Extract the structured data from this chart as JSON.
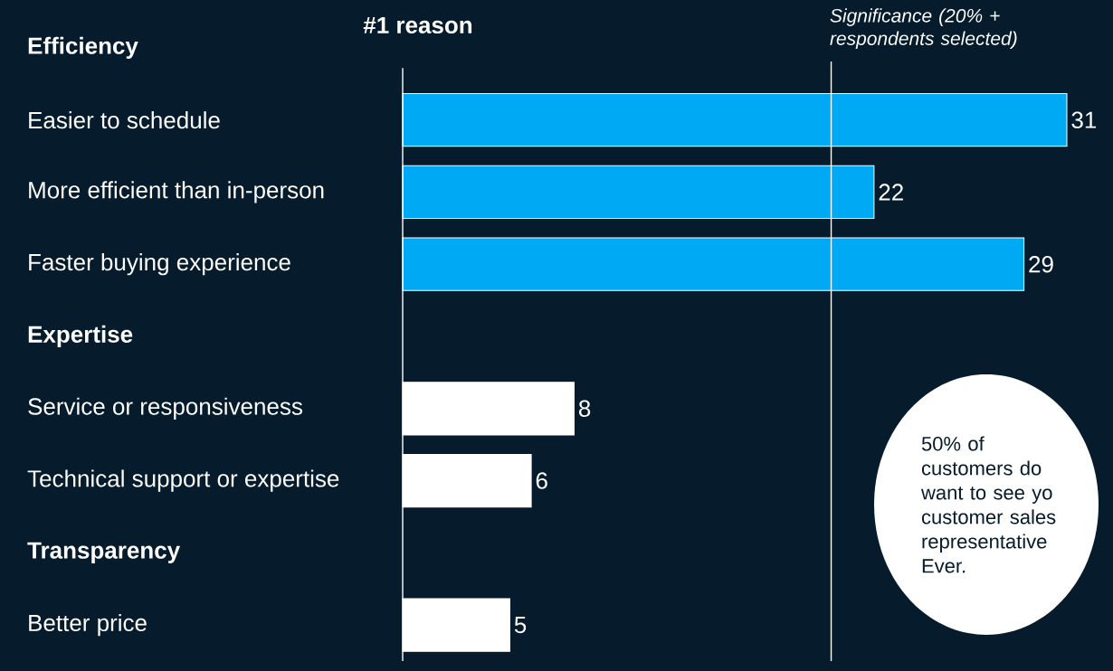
{
  "chart_data": {
    "type": "bar",
    "orientation": "horizontal",
    "title": "#1 reason",
    "categories": [
      "Efficiency",
      "Easier to schedule",
      "More efficient than in-person",
      "Faster buying experience",
      "Expertise",
      "Service or responsiveness",
      "Technical support or expertise",
      "Transparency",
      "Better price"
    ],
    "values": [
      null,
      31,
      22,
      29,
      null,
      8,
      6,
      null,
      5
    ],
    "colors": [
      null,
      "#00a9f4",
      "#00a9f4",
      "#00a9f4",
      null,
      "#ffffff",
      "#ffffff",
      null,
      "#ffffff"
    ],
    "data_labels": true,
    "ref_lines": [
      {
        "axis": "x",
        "value": 20,
        "label": "Significance (20% + respondents selected)",
        "color": "#ffffff"
      }
    ],
    "annotations": [
      "50% of customers do want to see yo customer sales representative Ever."
    ]
  }
}
